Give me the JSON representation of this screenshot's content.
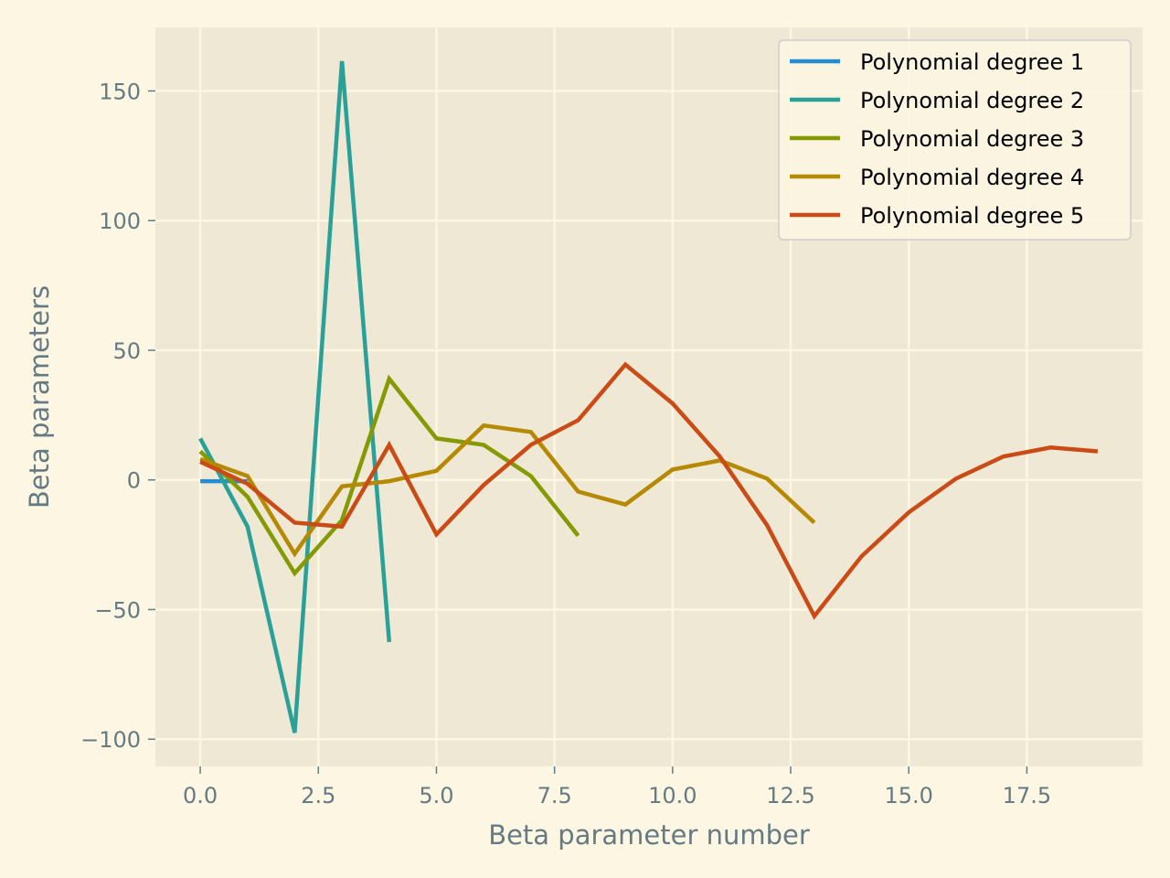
{
  "chart_data": {
    "type": "line",
    "title": "",
    "xlabel": "Beta parameter number",
    "ylabel": "Beta parameters",
    "xlim": [
      -0.95,
      19.95
    ],
    "ylim": [
      -110.5,
      174.5
    ],
    "xticks": [
      0.0,
      2.5,
      5.0,
      7.5,
      10.0,
      12.5,
      15.0,
      17.5
    ],
    "xtick_labels": [
      "0.0",
      "2.5",
      "5.0",
      "7.5",
      "10.0",
      "12.5",
      "15.0",
      "17.5"
    ],
    "yticks": [
      -100,
      -50,
      0,
      50,
      100,
      150
    ],
    "ytick_labels": [
      "−100",
      "−50",
      "0",
      "50",
      "100",
      "150"
    ],
    "grid": true,
    "legend_position": "top-right",
    "background_color": "#eee8d5",
    "figure_color": "#fdf6e3",
    "series": [
      {
        "name": "Polynomial degree 1",
        "color": "#268bd2",
        "x": [
          0,
          1
        ],
        "values": [
          -0.5,
          -0.5
        ]
      },
      {
        "name": "Polynomial degree 2",
        "color": "#2aa198",
        "x": [
          0,
          1,
          2,
          3,
          4
        ],
        "values": [
          16,
          -18,
          -97.5,
          161.5,
          -62.5
        ]
      },
      {
        "name": "Polynomial degree 3",
        "color": "#859900",
        "x": [
          0,
          1,
          2,
          3,
          4,
          5,
          6,
          7,
          8
        ],
        "values": [
          11,
          -6.5,
          -36,
          -15.5,
          39,
          16,
          13.5,
          1.5,
          -21.5
        ]
      },
      {
        "name": "Polynomial degree 4",
        "color": "#b58900",
        "x": [
          0,
          1,
          2,
          3,
          4,
          5,
          6,
          7,
          8,
          9,
          10,
          11,
          12,
          13
        ],
        "values": [
          8,
          1.5,
          -28.5,
          -2.5,
          -0.5,
          3.5,
          21,
          18.5,
          -4.5,
          -9.5,
          4,
          7.5,
          0.5,
          -16.5
        ]
      },
      {
        "name": "Polynomial degree 5",
        "color": "#cb4b16",
        "x": [
          0,
          1,
          2,
          3,
          4,
          5,
          6,
          7,
          8,
          9,
          10,
          11,
          12,
          13,
          14,
          15,
          16,
          17,
          18,
          19
        ],
        "values": [
          7,
          -1.5,
          -16.5,
          -18,
          13.5,
          -21,
          -2,
          13.5,
          23,
          44.5,
          29.5,
          9,
          -17.5,
          -52.5,
          -29.5,
          -12.5,
          0.5,
          9,
          12.5,
          11
        ]
      }
    ]
  }
}
